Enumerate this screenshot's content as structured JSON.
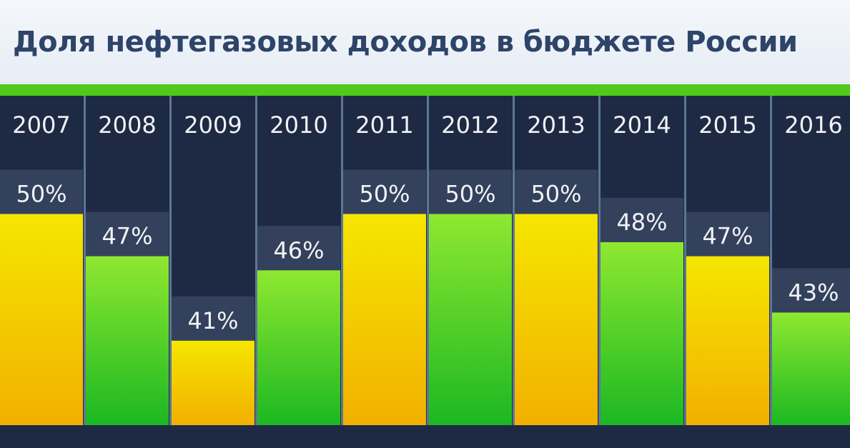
{
  "chart_data": {
    "type": "bar",
    "title": "Доля нефтегазовых доходов  в бюджете России",
    "categories": [
      "2007",
      "2008",
      "2009",
      "2010",
      "2011",
      "2012",
      "2013",
      "2014",
      "2015",
      "2016"
    ],
    "values": [
      50,
      47,
      41,
      46,
      50,
      50,
      50,
      48,
      47,
      43
    ],
    "data_labels": [
      "50%",
      "47%",
      "41%",
      "46%",
      "50%",
      "50%",
      "50%",
      "48%",
      "47%",
      "43%"
    ],
    "unit": "%",
    "ylim": [
      35,
      57
    ],
    "grid": false,
    "legend": "none",
    "colors": {
      "yellow_bar": [
        "#f5e600",
        "#f2b000"
      ],
      "green_bar": [
        "#8fe830",
        "#1cb822"
      ],
      "background": "#1e2a44",
      "label_box": "#33415c",
      "separator": "#5d7696",
      "accent_line": "#52c81a",
      "title": "#2e4468"
    },
    "bar_color_pattern": [
      "yellow",
      "green",
      "yellow",
      "green",
      "yellow",
      "green",
      "yellow",
      "green",
      "yellow",
      "green"
    ]
  }
}
